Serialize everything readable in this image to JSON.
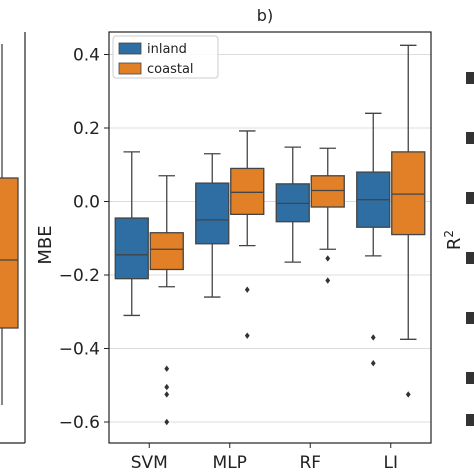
{
  "chart_data": {
    "type": "box",
    "title": "b)",
    "xlabel": "",
    "ylabel": "MBE",
    "right_neighbor_ylabel": "R",
    "right_neighbor_ylabel_sup": "2",
    "ylim": [
      -0.62,
      0.45
    ],
    "yticks": [
      0.4,
      0.2,
      0.0,
      -0.2,
      -0.4,
      -0.6
    ],
    "ytick_labels": [
      "0.4",
      "0.2",
      "0.0",
      "−0.2",
      "−0.4",
      "−0.6"
    ],
    "categories": [
      "SVM",
      "MLP",
      "RF",
      "LI"
    ],
    "grid": "horizontal",
    "legend_position": "top-left",
    "series": [
      {
        "name": "inland",
        "color": "#2e6ea2",
        "boxes": [
          {
            "whisker_low": -0.31,
            "q1": -0.21,
            "median": -0.145,
            "q3": -0.045,
            "whisker_high": 0.135,
            "outliers": []
          },
          {
            "whisker_low": -0.26,
            "q1": -0.115,
            "median": -0.05,
            "q3": 0.05,
            "whisker_high": 0.13,
            "outliers": []
          },
          {
            "whisker_low": -0.165,
            "q1": -0.055,
            "median": -0.005,
            "q3": 0.048,
            "whisker_high": 0.148,
            "outliers": []
          },
          {
            "whisker_low": -0.148,
            "q1": -0.07,
            "median": 0.005,
            "q3": 0.08,
            "whisker_high": 0.24,
            "outliers": [
              -0.37,
              -0.44
            ]
          }
        ]
      },
      {
        "name": "coastal",
        "color": "#e28027",
        "boxes": [
          {
            "whisker_low": -0.232,
            "q1": -0.185,
            "median": -0.13,
            "q3": -0.085,
            "whisker_high": 0.07,
            "outliers": [
              -0.455,
              -0.505,
              -0.525,
              -0.6
            ]
          },
          {
            "whisker_low": -0.12,
            "q1": -0.035,
            "median": 0.025,
            "q3": 0.09,
            "whisker_high": 0.192,
            "outliers": [
              -0.24,
              -0.365
            ]
          },
          {
            "whisker_low": -0.13,
            "q1": -0.015,
            "median": 0.03,
            "q3": 0.07,
            "whisker_high": 0.145,
            "outliers": [
              -0.155,
              -0.215
            ]
          },
          {
            "whisker_low": -0.375,
            "q1": -0.09,
            "median": 0.02,
            "q3": 0.135,
            "whisker_high": 0.425,
            "outliers": [
              -0.525
            ]
          }
        ]
      }
    ],
    "left_neighbor_box": {
      "color": "#e28027",
      "top_label": "",
      "note": "partial box from adjacent panel a)"
    }
  }
}
